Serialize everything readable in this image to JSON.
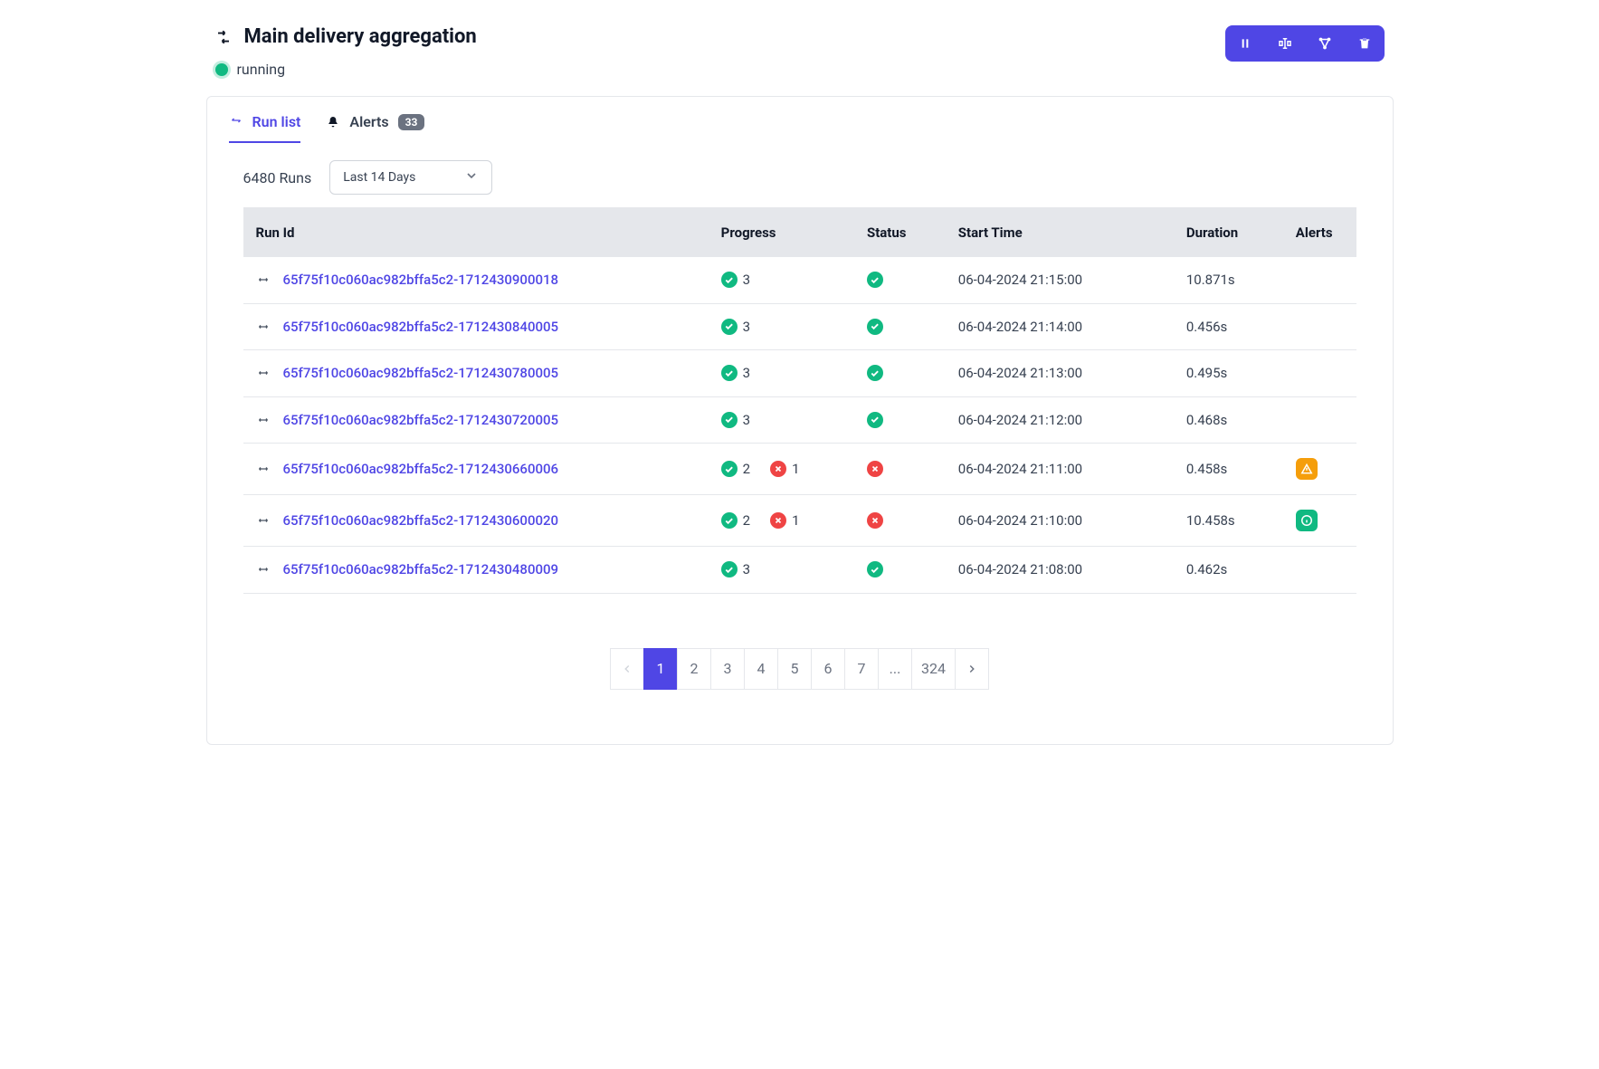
{
  "header": {
    "title": "Main delivery aggregation",
    "status": "running"
  },
  "actions": {
    "pause": "pause",
    "rename": "rename",
    "graph": "graph",
    "delete": "delete"
  },
  "tabs": {
    "runlist_label": "Run list",
    "alerts_label": "Alerts",
    "alerts_count": "33"
  },
  "filter": {
    "runs_count": "6480 Runs",
    "range_selected": "Last 14 Days"
  },
  "columns": {
    "runid": "Run Id",
    "progress": "Progress",
    "status": "Status",
    "start": "Start Time",
    "duration": "Duration",
    "alerts": "Alerts"
  },
  "rows": [
    {
      "id": "65f75f10c060ac982bffa5c2-1712430900018",
      "ok": "3",
      "fail": null,
      "status": "ok",
      "start": "06-04-2024 21:15:00",
      "duration": "10.871s",
      "alert": null
    },
    {
      "id": "65f75f10c060ac982bffa5c2-1712430840005",
      "ok": "3",
      "fail": null,
      "status": "ok",
      "start": "06-04-2024 21:14:00",
      "duration": "0.456s",
      "alert": null
    },
    {
      "id": "65f75f10c060ac982bffa5c2-1712430780005",
      "ok": "3",
      "fail": null,
      "status": "ok",
      "start": "06-04-2024 21:13:00",
      "duration": "0.495s",
      "alert": null
    },
    {
      "id": "65f75f10c060ac982bffa5c2-1712430720005",
      "ok": "3",
      "fail": null,
      "status": "ok",
      "start": "06-04-2024 21:12:00",
      "duration": "0.468s",
      "alert": null
    },
    {
      "id": "65f75f10c060ac982bffa5c2-1712430660006",
      "ok": "2",
      "fail": "1",
      "status": "fail",
      "start": "06-04-2024 21:11:00",
      "duration": "0.458s",
      "alert": "warn"
    },
    {
      "id": "65f75f10c060ac982bffa5c2-1712430600020",
      "ok": "2",
      "fail": "1",
      "status": "fail",
      "start": "06-04-2024 21:10:00",
      "duration": "10.458s",
      "alert": "info"
    },
    {
      "id": "65f75f10c060ac982bffa5c2-1712430480009",
      "ok": "3",
      "fail": null,
      "status": "ok",
      "start": "06-04-2024 21:08:00",
      "duration": "0.462s",
      "alert": null
    }
  ],
  "pagination": {
    "pages": [
      "1",
      "2",
      "3",
      "4",
      "5",
      "6",
      "7",
      "...",
      "324"
    ],
    "active": "1"
  },
  "colors": {
    "primary": "#4f46e5",
    "success": "#10b981",
    "danger": "#ef4444",
    "warning": "#f59e0b",
    "border": "#e5e7eb",
    "text": "#374151",
    "header_bg": "#e5e7eb"
  }
}
